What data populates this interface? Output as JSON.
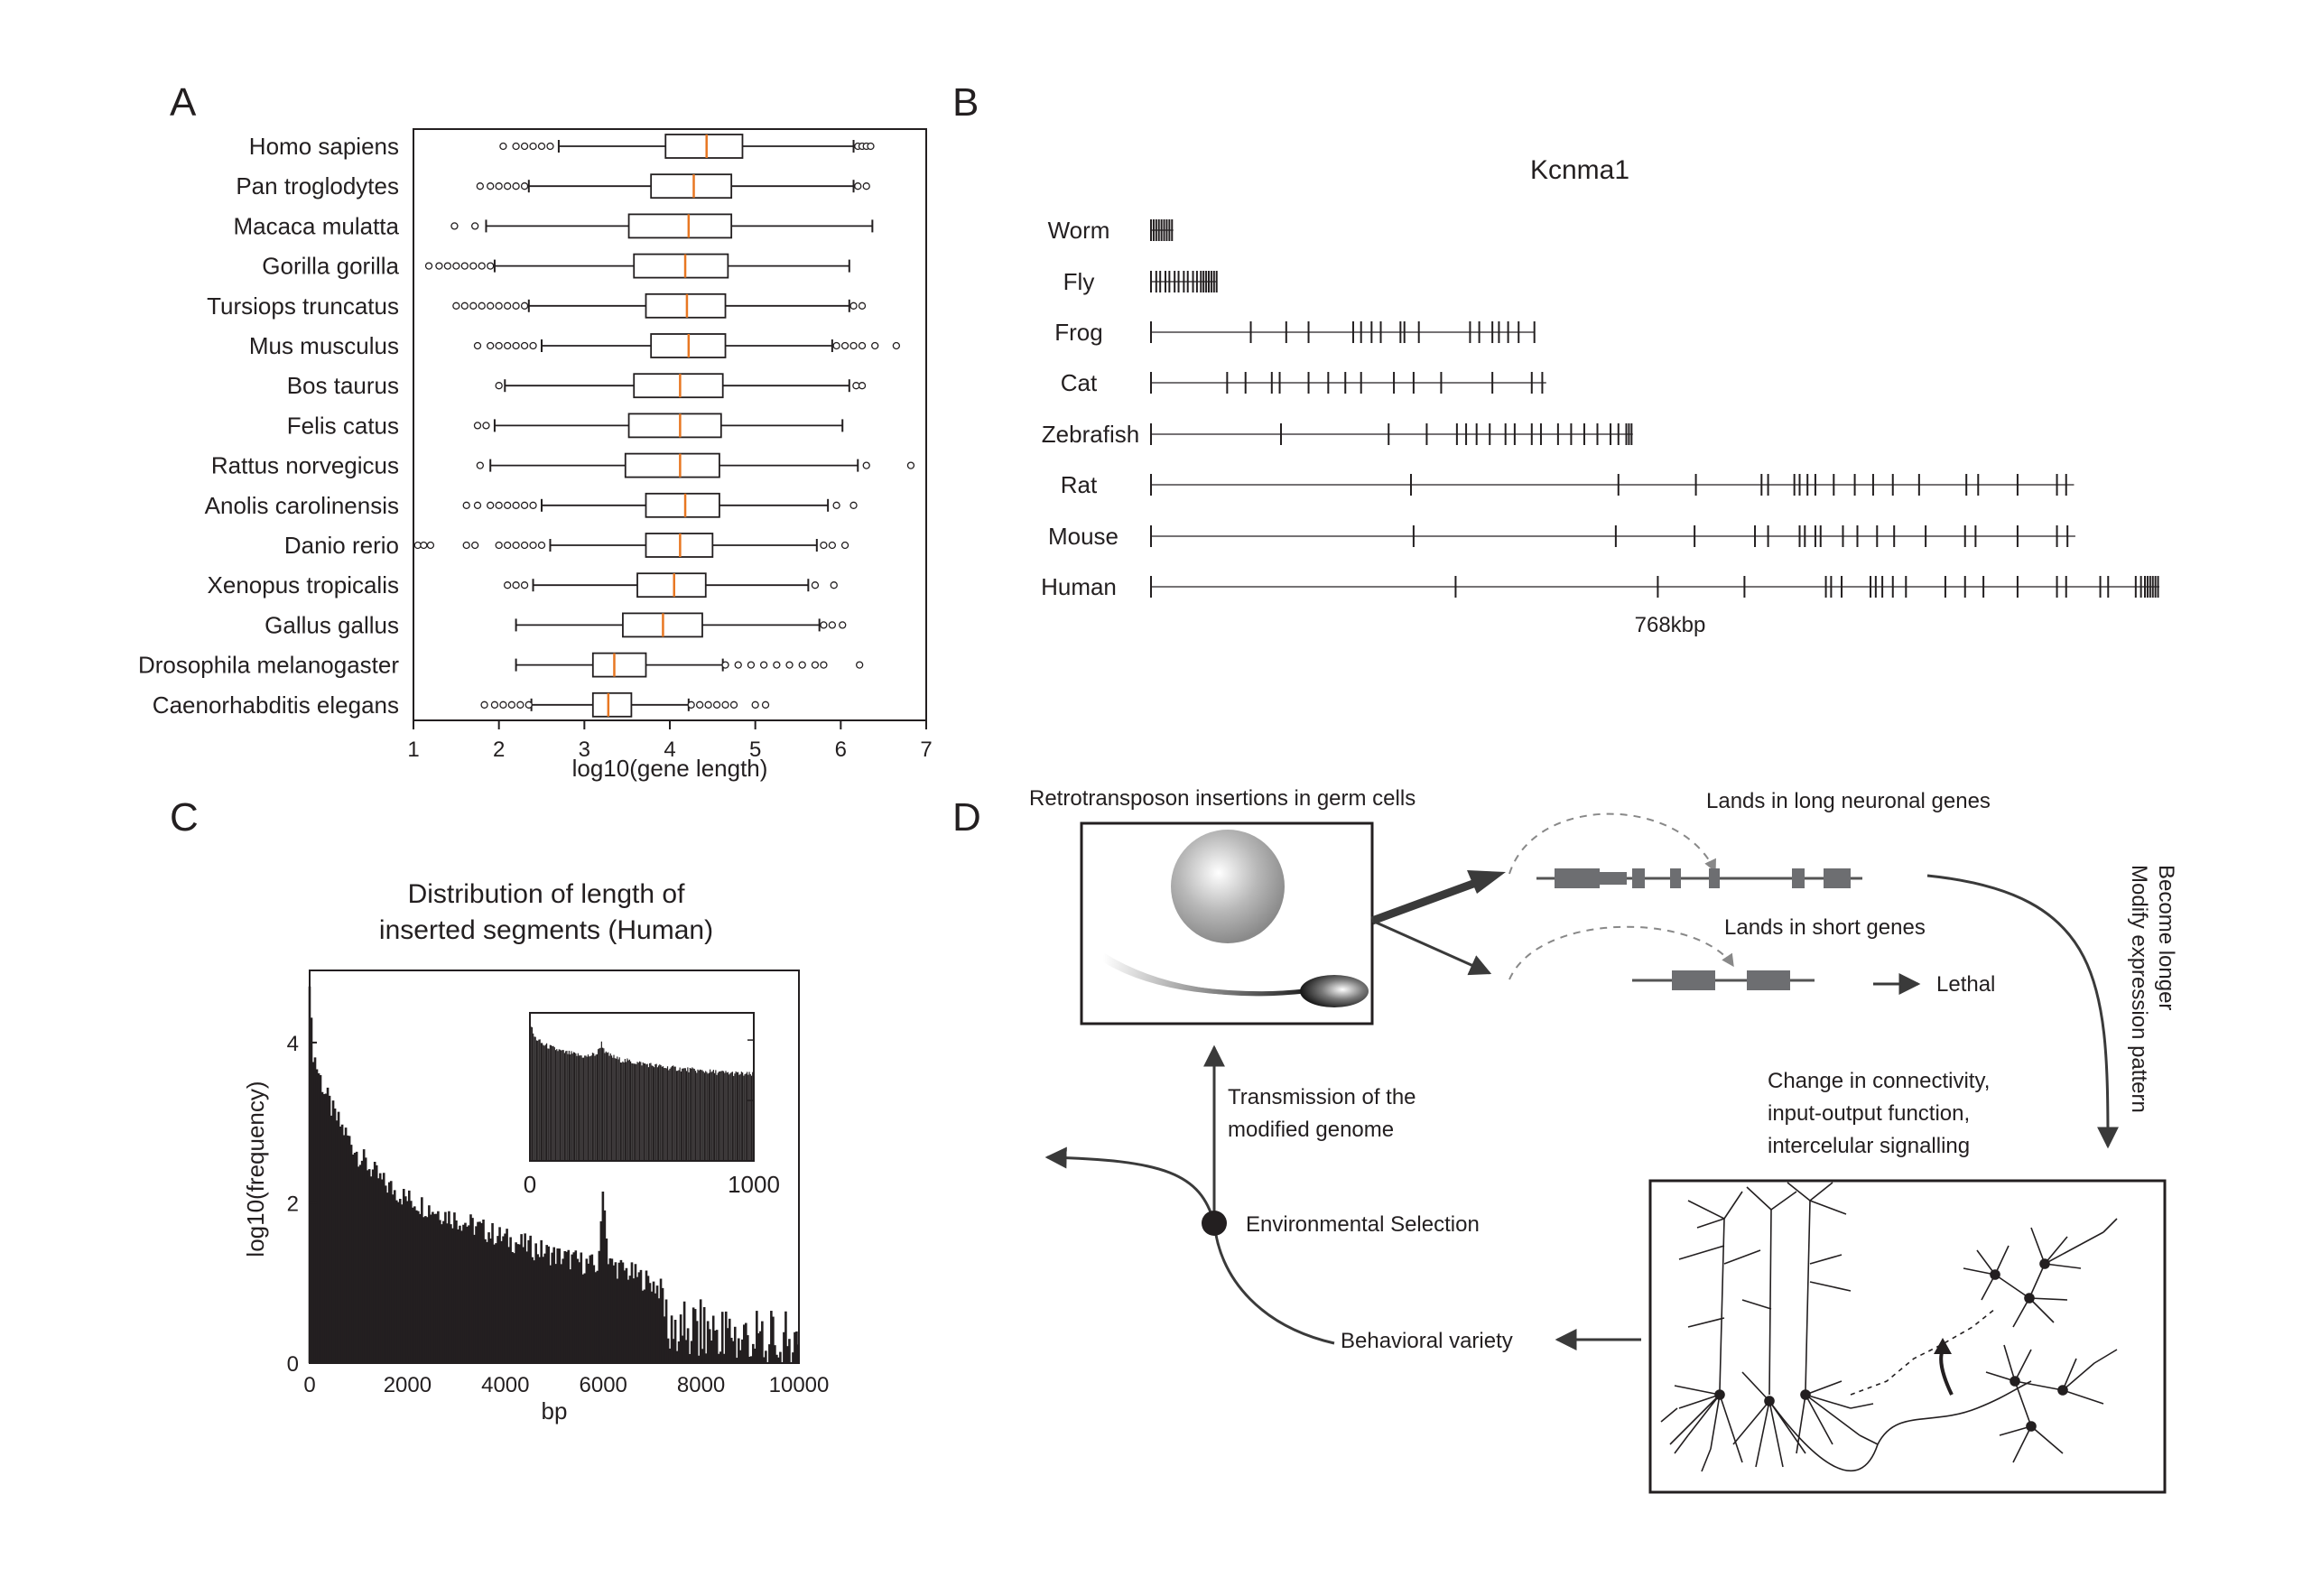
{
  "panels": {
    "a": "A",
    "b": "B",
    "c": "C",
    "d": "D"
  },
  "chart_data": [
    {
      "type": "box",
      "panel": "A",
      "xlabel": "log10(gene length)",
      "xlim": [
        1,
        7
      ],
      "xticks": [
        "1",
        "2",
        "3",
        "4",
        "5",
        "6",
        "7"
      ],
      "median_color": "#e87722",
      "species": [
        {
          "name": "Homo sapiens",
          "wlo": 2.7,
          "q1": 3.95,
          "med": 4.43,
          "q3": 4.85,
          "whi": 6.15,
          "outlo": [
            2.05,
            2.2,
            2.3,
            2.4,
            2.5,
            2.6
          ],
          "outhi": [
            6.2,
            6.25,
            6.3,
            6.35
          ]
        },
        {
          "name": "Pan troglodytes",
          "wlo": 2.35,
          "q1": 3.78,
          "med": 4.28,
          "q3": 4.72,
          "whi": 6.15,
          "outlo": [
            1.78,
            1.9,
            2.0,
            2.1,
            2.2,
            2.3
          ],
          "outhi": [
            6.2,
            6.3
          ]
        },
        {
          "name": "Macaca mulatta",
          "wlo": 1.85,
          "q1": 3.52,
          "med": 4.22,
          "q3": 4.72,
          "whi": 6.37,
          "outlo": [
            1.48,
            1.72
          ],
          "outhi": []
        },
        {
          "name": "Gorilla gorilla",
          "wlo": 1.95,
          "q1": 3.58,
          "med": 4.18,
          "q3": 4.68,
          "whi": 6.1,
          "outlo": [
            1.18,
            1.3,
            1.4,
            1.5,
            1.6,
            1.7,
            1.8,
            1.9
          ],
          "outhi": []
        },
        {
          "name": "Tursiops truncatus",
          "wlo": 2.35,
          "q1": 3.72,
          "med": 4.2,
          "q3": 4.65,
          "whi": 6.1,
          "outlo": [
            1.5,
            1.6,
            1.7,
            1.8,
            1.9,
            2.0,
            2.1,
            2.2,
            2.3
          ],
          "outhi": [
            6.15,
            6.25
          ]
        },
        {
          "name": "Mus musculus",
          "wlo": 2.5,
          "q1": 3.78,
          "med": 4.22,
          "q3": 4.65,
          "whi": 5.9,
          "outlo": [
            1.75,
            1.9,
            2.0,
            2.1,
            2.2,
            2.3,
            2.4
          ],
          "outhi": [
            5.95,
            6.05,
            6.15,
            6.25,
            6.4,
            6.65
          ]
        },
        {
          "name": "Bos taurus",
          "wlo": 2.07,
          "q1": 3.58,
          "med": 4.12,
          "q3": 4.62,
          "whi": 6.1,
          "outlo": [
            2.0
          ],
          "outhi": [
            6.18,
            6.25
          ]
        },
        {
          "name": "Felis catus",
          "wlo": 1.95,
          "q1": 3.52,
          "med": 4.12,
          "q3": 4.6,
          "whi": 6.02,
          "outlo": [
            1.75,
            1.85
          ],
          "outhi": []
        },
        {
          "name": "Rattus norvegicus",
          "wlo": 1.9,
          "q1": 3.48,
          "med": 4.12,
          "q3": 4.58,
          "whi": 6.2,
          "outlo": [
            1.78
          ],
          "outhi": [
            6.3,
            6.82
          ]
        },
        {
          "name": "Anolis carolinensis",
          "wlo": 2.5,
          "q1": 3.72,
          "med": 4.18,
          "q3": 4.58,
          "whi": 5.85,
          "outlo": [
            1.62,
            1.75,
            1.9,
            2.0,
            2.1,
            2.2,
            2.3,
            2.4
          ],
          "outhi": [
            5.95,
            6.15
          ]
        },
        {
          "name": "Danio rerio",
          "wlo": 2.6,
          "q1": 3.72,
          "med": 4.12,
          "q3": 4.5,
          "whi": 5.72,
          "outlo": [
            1.05,
            1.12,
            1.2,
            1.62,
            1.72,
            2.0,
            2.1,
            2.2,
            2.3,
            2.4,
            2.5
          ],
          "outhi": [
            5.8,
            5.9,
            6.05
          ]
        },
        {
          "name": "Xenopus tropicalis",
          "wlo": 2.4,
          "q1": 3.62,
          "med": 4.05,
          "q3": 4.42,
          "whi": 5.62,
          "outlo": [
            2.1,
            2.2,
            2.3
          ],
          "outhi": [
            5.7,
            5.92
          ]
        },
        {
          "name": "Gallus gallus",
          "wlo": 2.2,
          "q1": 3.45,
          "med": 3.92,
          "q3": 4.38,
          "whi": 5.75,
          "outlo": [],
          "outhi": [
            5.8,
            5.9,
            6.02
          ]
        },
        {
          "name": "Drosophila melanogaster",
          "wlo": 2.2,
          "q1": 3.1,
          "med": 3.35,
          "q3": 3.72,
          "whi": 4.62,
          "outlo": [],
          "outhi": [
            4.65,
            4.8,
            4.95,
            5.1,
            5.25,
            5.4,
            5.55,
            5.7,
            5.8,
            6.22
          ]
        },
        {
          "name": "Caenorhabditis elegans",
          "wlo": 2.38,
          "q1": 3.1,
          "med": 3.28,
          "q3": 3.55,
          "whi": 4.22,
          "outlo": [
            1.83,
            1.95,
            2.05,
            2.15,
            2.25,
            2.35
          ],
          "outhi": [
            4.25,
            4.35,
            4.45,
            4.55,
            4.65,
            4.75,
            5.0,
            5.12
          ]
        }
      ]
    },
    {
      "type": "gene-structure",
      "panel": "B",
      "title": "Kcnma1",
      "scale_label": "768kbp",
      "scale_kbp": 768,
      "genes": [
        {
          "species": "Worm",
          "length_kbp": 17,
          "exons_kbp": [
            0,
            2,
            4,
            6,
            8,
            10,
            12,
            14,
            16
          ]
        },
        {
          "species": "Fly",
          "length_kbp": 50,
          "exons_kbp": [
            0,
            4,
            7,
            11,
            14,
            18,
            21,
            25,
            28,
            32,
            35,
            38,
            40,
            42,
            44,
            46,
            48,
            50
          ]
        },
        {
          "species": "Frog",
          "length_kbp": 292,
          "exons_kbp": [
            76,
            103,
            120,
            154,
            160,
            168,
            175,
            190,
            193,
            204,
            243,
            250,
            260,
            265,
            272,
            280,
            292
          ]
        },
        {
          "species": "Cat",
          "length_kbp": 301,
          "exons_kbp": [
            58,
            72,
            92,
            98,
            120,
            135,
            148,
            160,
            185,
            200,
            221,
            260,
            290,
            298
          ]
        },
        {
          "species": "Zebrafish",
          "length_kbp": 367,
          "exons_kbp": [
            99,
            181,
            210,
            233,
            240,
            248,
            258,
            270,
            277,
            290,
            297,
            310,
            320,
            330,
            340,
            350,
            356,
            362,
            364,
            366
          ]
        },
        {
          "species": "Rat",
          "length_kbp": 703,
          "exons_kbp": [
            198,
            356,
            415,
            465,
            470,
            490,
            494,
            500,
            506,
            520,
            536,
            550,
            565,
            585,
            621,
            630,
            660,
            690,
            697
          ]
        },
        {
          "species": "Mouse",
          "length_kbp": 704,
          "exons_kbp": [
            200,
            354,
            414,
            460,
            470,
            494,
            498,
            506,
            510,
            527,
            538,
            553,
            566,
            590,
            620,
            628,
            660,
            690,
            698
          ]
        },
        {
          "species": "Human",
          "length_kbp": 768,
          "exons_kbp": [
            232,
            386,
            452,
            514,
            518,
            526,
            548,
            552,
            557,
            565,
            575,
            605,
            620,
            634,
            660,
            690,
            697,
            723,
            729,
            750,
            754,
            757,
            759,
            761,
            763,
            765,
            767
          ]
        }
      ]
    },
    {
      "type": "bar",
      "panel": "C",
      "title": "Distribution of length of inserted segments (Human)",
      "title_lines": [
        "Distribution of length of",
        "inserted segments (Human)"
      ],
      "xlabel": "bp",
      "ylabel": "log10(frequency)",
      "xlim": [
        0,
        10000
      ],
      "ylim": [
        0,
        4.9
      ],
      "xticks": [
        "0",
        "2000",
        "4000",
        "6000",
        "8000",
        "10000"
      ],
      "yticks": [
        "0",
        "2",
        "4"
      ],
      "curve": [
        [
          0,
          4.85
        ],
        [
          50,
          3.95
        ],
        [
          150,
          3.7
        ],
        [
          300,
          3.4
        ],
        [
          500,
          3.1
        ],
        [
          800,
          2.8
        ],
        [
          1000,
          2.6
        ],
        [
          1500,
          2.25
        ],
        [
          2000,
          2.05
        ],
        [
          3000,
          1.8
        ],
        [
          4000,
          1.55
        ],
        [
          5000,
          1.35
        ],
        [
          5900,
          1.2
        ],
        [
          6000,
          2.2
        ],
        [
          6100,
          1.25
        ],
        [
          7000,
          1.0
        ],
        [
          7200,
          0.9
        ],
        [
          7300,
          0.55
        ],
        [
          8000,
          0.45
        ],
        [
          9000,
          0.35
        ],
        [
          10000,
          0.3
        ]
      ],
      "inset": {
        "xticks": [
          "0",
          "1000"
        ],
        "xlim": [
          0,
          1000
        ],
        "ylim": [
          0,
          4.9
        ],
        "curve": [
          [
            0,
            4.6
          ],
          [
            20,
            4.1
          ],
          [
            60,
            3.85
          ],
          [
            150,
            3.6
          ],
          [
            250,
            3.45
          ],
          [
            300,
            3.55
          ],
          [
            320,
            3.9
          ],
          [
            340,
            3.55
          ],
          [
            400,
            3.35
          ],
          [
            600,
            3.1
          ],
          [
            800,
            2.95
          ],
          [
            1000,
            2.85
          ]
        ]
      }
    }
  ],
  "diagram": {
    "retro_label": "Retrotransposon insertions in germ cells",
    "long_genes": "Lands in long  neuronal genes",
    "short_genes": "Lands in short genes",
    "lethal": "Lethal",
    "become_longer": "Become longer",
    "modify_expression": "Modify expression pattern",
    "change_lines": [
      "Change in connectivity,",
      "input-output function,",
      "intercelular signalling"
    ],
    "transmission_lines": [
      "Transmission of the",
      "modified genome"
    ],
    "env_selection": "Environmental Selection",
    "behavioral": "Behavioral variety"
  }
}
